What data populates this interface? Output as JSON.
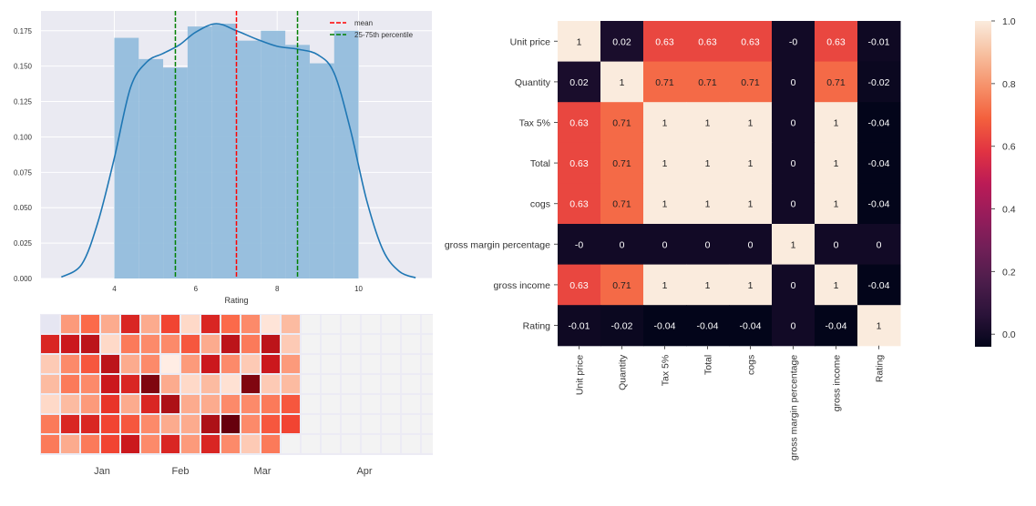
{
  "chart_data": [
    {
      "type": "histogram",
      "xlabel": "Rating",
      "ylabel": "",
      "xlim": [
        2.2,
        11.8
      ],
      "ylim": [
        0,
        0.189
      ],
      "xticks": [
        4,
        6,
        8,
        10
      ],
      "yticks": [
        0.0,
        0.025,
        0.05,
        0.075,
        0.1,
        0.125,
        0.15,
        0.175
      ],
      "ytick_labels": [
        "0.000",
        "0.025",
        "0.050",
        "0.075",
        "0.100",
        "0.125",
        "0.150",
        "0.175"
      ],
      "grid": true,
      "legend_position": "top-right",
      "bins": {
        "edges": [
          4.0,
          4.6,
          5.2,
          5.8,
          6.4,
          7.0,
          7.6,
          8.2,
          8.8,
          9.4,
          10.0
        ],
        "density": [
          0.17,
          0.155,
          0.149,
          0.178,
          0.18,
          0.168,
          0.175,
          0.165,
          0.152,
          0.175
        ]
      },
      "kde": {
        "x": [
          2.7,
          3.2,
          3.6,
          4.0,
          4.4,
          4.8,
          5.2,
          5.6,
          6.0,
          6.5,
          7.0,
          7.5,
          8.0,
          8.5,
          9.0,
          9.4,
          9.8,
          10.2,
          10.6,
          11.0,
          11.4
        ],
        "y": [
          0.001,
          0.01,
          0.04,
          0.085,
          0.135,
          0.153,
          0.159,
          0.165,
          0.174,
          0.18,
          0.175,
          0.169,
          0.164,
          0.162,
          0.158,
          0.145,
          0.105,
          0.055,
          0.02,
          0.005,
          0.0005
        ]
      },
      "vlines": [
        {
          "name": "mean",
          "x": 7.0,
          "color": "#ff0000"
        },
        {
          "name": "25-75th percentile",
          "x": 5.5,
          "color": "#008000"
        },
        {
          "name": "",
          "x": 8.5,
          "color": "#008000"
        }
      ],
      "colors": {
        "bars": "#93bddc",
        "kde": "#1f77b4",
        "background": "#eaeaf2"
      }
    },
    {
      "type": "heatmap",
      "subtype": "calendar",
      "month_labels": [
        "Jan",
        "Feb",
        "Mar",
        "Apr"
      ],
      "colormap": "Reds",
      "values": [
        [
          null,
          0.35,
          0.5,
          0.3,
          0.7,
          0.3,
          0.6,
          0.15,
          0.7,
          0.5,
          0.4,
          0.1,
          0.25
        ],
        [
          0.7,
          0.75,
          0.8,
          0.15,
          0.45,
          0.4,
          0.4,
          0.55,
          0.3,
          0.8,
          0.45,
          0.8,
          0.2
        ],
        [
          0.2,
          0.4,
          0.55,
          0.8,
          0.3,
          0.4,
          0.05,
          0.35,
          0.75,
          0.4,
          0.2,
          0.75,
          0.35
        ],
        [
          0.25,
          0.45,
          0.4,
          0.75,
          0.7,
          0.95,
          0.3,
          0.15,
          0.25,
          0.12,
          0.95,
          0.2,
          0.25
        ],
        [
          0.15,
          0.25,
          0.35,
          0.65,
          0.3,
          0.7,
          0.85,
          0.3,
          0.3,
          0.4,
          0.4,
          0.45,
          0.55
        ],
        [
          0.45,
          0.7,
          0.7,
          0.6,
          0.55,
          0.4,
          0.3,
          0.3,
          0.85,
          1.0,
          0.4,
          0.55,
          0.6
        ],
        [
          0.45,
          0.3,
          0.45,
          0.6,
          0.75,
          0.4,
          0.7,
          0.35,
          0.7,
          0.4,
          0.2,
          0.45,
          null
        ]
      ]
    },
    {
      "type": "heatmap",
      "subtype": "correlation",
      "colormap": "rocket",
      "labels": [
        "Unit price",
        "Quantity",
        "Tax 5%",
        "Total",
        "cogs",
        "gross margin percentage",
        "gross income",
        "Rating"
      ],
      "values": [
        [
          1,
          0.02,
          0.63,
          0.63,
          0.63,
          -0.0,
          0.63,
          -0.01
        ],
        [
          0.02,
          1,
          0.71,
          0.71,
          0.71,
          0,
          0.71,
          -0.02
        ],
        [
          0.63,
          0.71,
          1,
          1,
          1,
          0,
          1,
          -0.04
        ],
        [
          0.63,
          0.71,
          1,
          1,
          1,
          0,
          1,
          -0.04
        ],
        [
          0.63,
          0.71,
          1,
          1,
          1,
          0,
          1,
          -0.04
        ],
        [
          -0.0,
          0,
          0,
          0,
          0,
          1,
          0,
          0
        ],
        [
          0.63,
          0.71,
          1,
          1,
          1,
          0,
          1,
          -0.04
        ],
        [
          -0.01,
          -0.02,
          -0.04,
          -0.04,
          -0.04,
          0,
          -0.04,
          1
        ]
      ],
      "annotations": [
        [
          "1",
          "0.02",
          "0.63",
          "0.63",
          "0.63",
          "-0",
          "0.63",
          "-0.01"
        ],
        [
          "0.02",
          "1",
          "0.71",
          "0.71",
          "0.71",
          "0",
          "0.71",
          "-0.02"
        ],
        [
          "0.63",
          "0.71",
          "1",
          "1",
          "1",
          "0",
          "1",
          "-0.04"
        ],
        [
          "0.63",
          "0.71",
          "1",
          "1",
          "1",
          "0",
          "1",
          "-0.04"
        ],
        [
          "0.63",
          "0.71",
          "1",
          "1",
          "1",
          "0",
          "1",
          "-0.04"
        ],
        [
          "-0",
          "0",
          "0",
          "0",
          "0",
          "1",
          "0",
          "0"
        ],
        [
          "0.63",
          "0.71",
          "1",
          "1",
          "1",
          "0",
          "1",
          "-0.04"
        ],
        [
          "-0.01",
          "-0.02",
          "-0.04",
          "-0.04",
          "-0.04",
          "0",
          "-0.04",
          "1"
        ]
      ],
      "colorbar": {
        "range": [
          -0.04,
          1.0
        ],
        "ticks": [
          "0.0",
          "0.2",
          "0.4",
          "0.6",
          "0.8",
          "1.0"
        ]
      }
    }
  ]
}
